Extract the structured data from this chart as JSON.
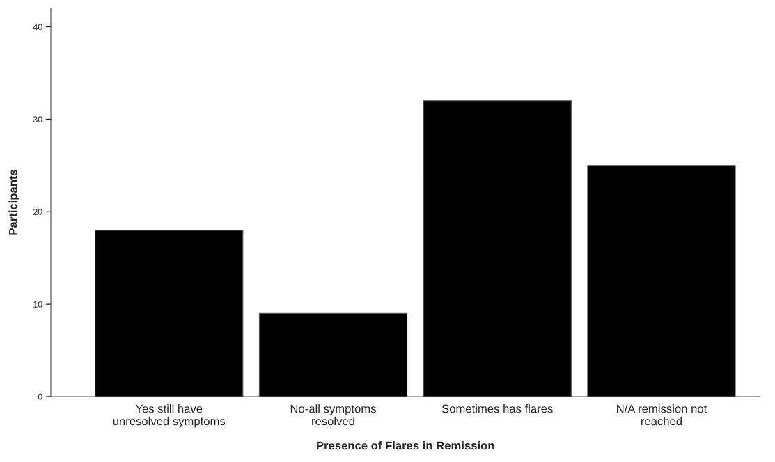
{
  "chart_data": {
    "type": "bar",
    "xlabel": "Presence of Flares in Remission",
    "ylabel": "Participants",
    "categories": [
      "Yes still have\nunresolved symptoms",
      "No-all symptoms\nresolved",
      "Sometimes has flares",
      "N/A remission not\nreached"
    ],
    "values": [
      18,
      9,
      32,
      25
    ],
    "color": "#000000",
    "ylim": [
      0,
      42
    ],
    "yticks": [
      0,
      10,
      20,
      30,
      40
    ],
    "grid": false,
    "legend": false
  }
}
